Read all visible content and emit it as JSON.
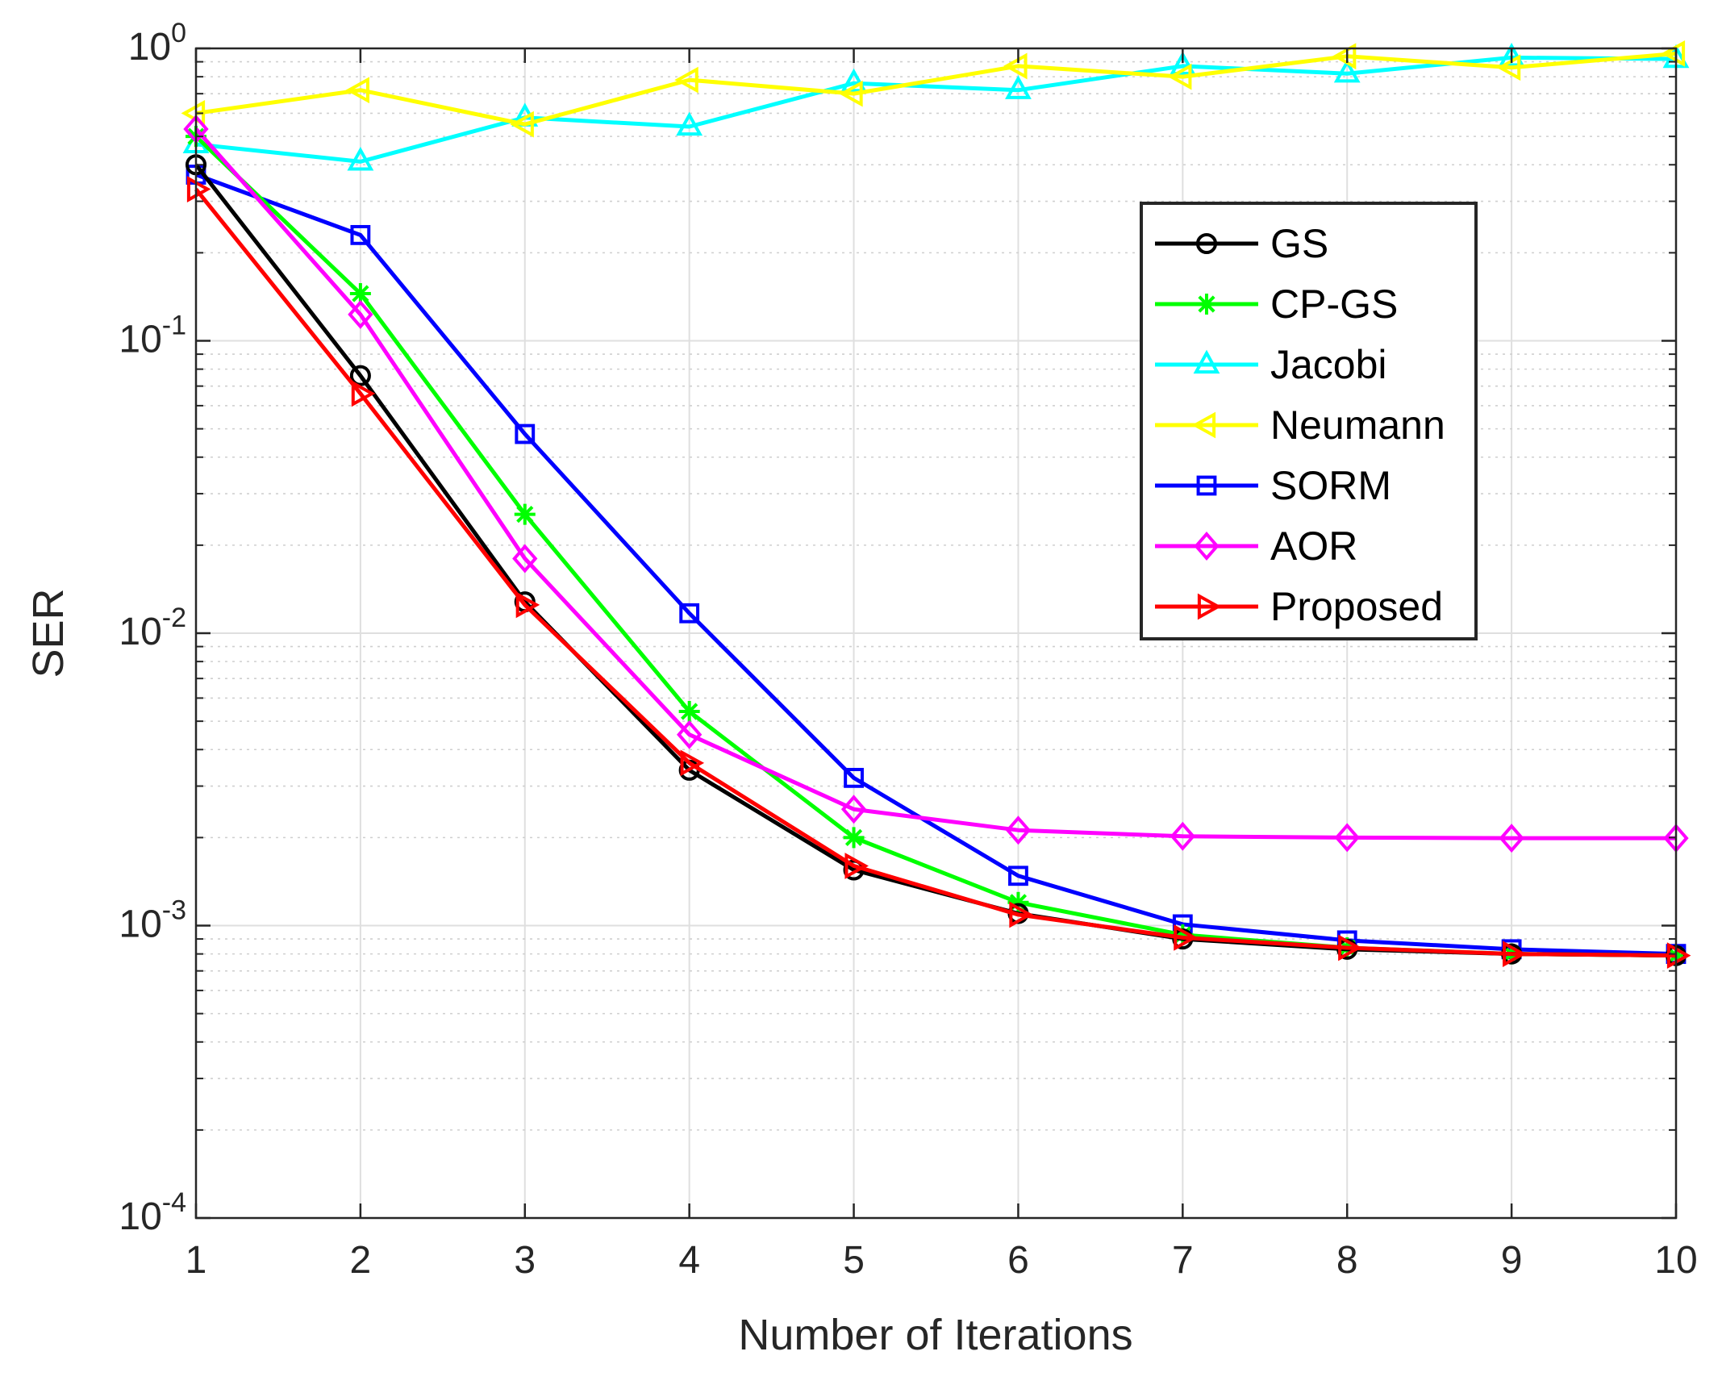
{
  "chart_data": {
    "type": "line",
    "title": "",
    "xlabel": "Number of Iterations",
    "ylabel": "SER",
    "yscale": "log",
    "xlim": [
      1,
      10
    ],
    "ylim": [
      0.0001,
      1
    ],
    "grid": true,
    "legend_position": "top-right",
    "x": [
      1,
      2,
      3,
      4,
      5,
      6,
      7,
      8,
      9,
      10
    ],
    "x_tick_labels": [
      "1",
      "2",
      "3",
      "4",
      "5",
      "6",
      "7",
      "8",
      "9",
      "10"
    ],
    "y_tick_labels": [
      {
        "base": "10",
        "exp": "0"
      },
      {
        "base": "10",
        "exp": "-1"
      },
      {
        "base": "10",
        "exp": "-2"
      },
      {
        "base": "10",
        "exp": "-3"
      },
      {
        "base": "10",
        "exp": "-4"
      }
    ],
    "series": [
      {
        "name": "Jacobi",
        "color": "#00ffff",
        "marker": "triangle-up",
        "values": [
          0.47,
          0.41,
          0.58,
          0.54,
          0.76,
          0.72,
          0.87,
          0.82,
          0.93,
          0.92
        ]
      },
      {
        "name": "Neumann",
        "color": "#ffff00",
        "marker": "triangle-left",
        "values": [
          0.6,
          0.72,
          0.55,
          0.78,
          0.7,
          0.87,
          0.8,
          0.94,
          0.86,
          0.96
        ]
      },
      {
        "name": "SORM",
        "color": "#0000ff",
        "marker": "square",
        "values": [
          0.37,
          0.23,
          0.048,
          0.0117,
          0.0032,
          0.00148,
          0.00101,
          0.00089,
          0.00083,
          0.0008
        ]
      },
      {
        "name": "CP-GS",
        "color": "#00ff00",
        "marker": "asterisk",
        "values": [
          0.5,
          0.145,
          0.0255,
          0.0054,
          0.002,
          0.0012,
          0.00093,
          0.00084,
          0.0008,
          0.00079
        ]
      },
      {
        "name": "AOR",
        "color": "#ff00ff",
        "marker": "diamond",
        "values": [
          0.53,
          0.123,
          0.018,
          0.0045,
          0.0025,
          0.00212,
          0.00202,
          0.002,
          0.00199,
          0.00199
        ]
      },
      {
        "name": "GS",
        "color": "#000000",
        "marker": "circle",
        "values": [
          0.4,
          0.076,
          0.0128,
          0.0034,
          0.00155,
          0.0011,
          0.0009,
          0.00083,
          0.0008,
          0.00079
        ]
      },
      {
        "name": "Proposed",
        "color": "#ff0000",
        "marker": "triangle-right",
        "values": [
          0.33,
          0.066,
          0.0125,
          0.0036,
          0.0016,
          0.00109,
          0.00091,
          0.00084,
          0.0008,
          0.00079
        ]
      }
    ],
    "legend_order": [
      "GS",
      "CP-GS",
      "Jacobi",
      "Neumann",
      "SORM",
      "AOR",
      "Proposed"
    ]
  }
}
